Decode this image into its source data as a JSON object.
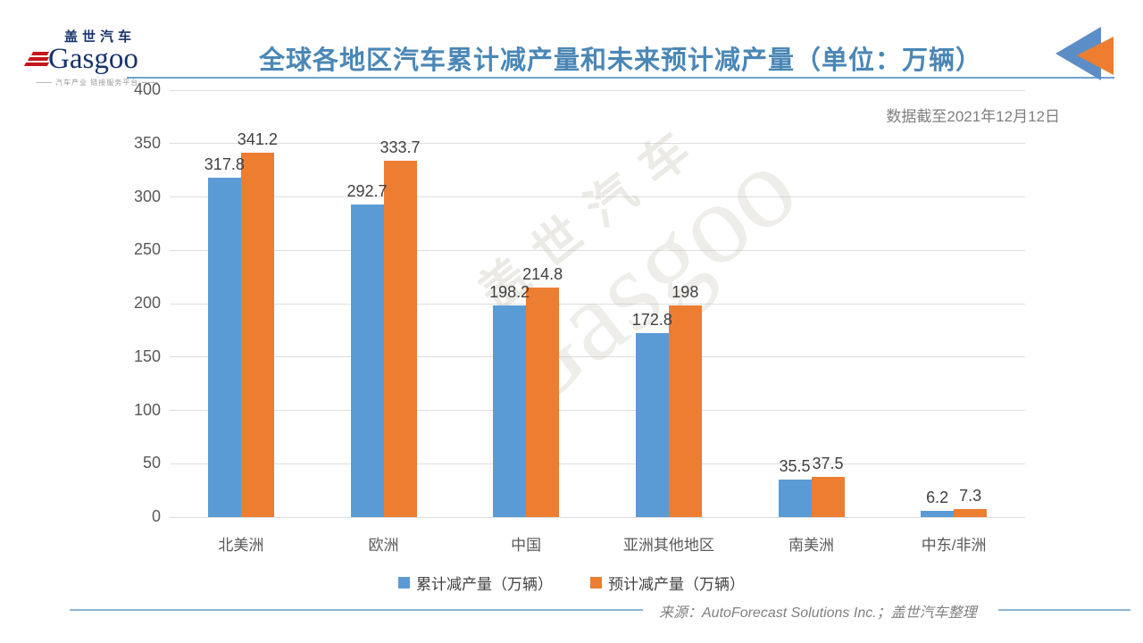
{
  "header": {
    "logo": {
      "cn": "盖世汽车",
      "en": "Gasgoo",
      "tagline": "汽车产业 链接服务平台"
    }
  },
  "watermark": {
    "cn": "盖世汽车",
    "en": "Gasgoo"
  },
  "chart_data": {
    "type": "bar",
    "title": "全球各地区汽车累计减产量和未来预计减产量（单位：万辆）",
    "annotation": "数据截至2021年12月12日",
    "categories": [
      "北美洲",
      "欧洲",
      "中国",
      "亚洲其他地区",
      "南美洲",
      "中东/非洲"
    ],
    "series": [
      {
        "name": "累计减产量（万辆）",
        "color": "#5B9BD5",
        "values": [
          317.8,
          292.7,
          198.2,
          172.8,
          35.5,
          6.2
        ]
      },
      {
        "name": "预计减产量（万辆）",
        "color": "#ED7D31",
        "values": [
          341.2,
          333.7,
          214.8,
          198,
          37.5,
          7.3
        ]
      }
    ],
    "xlabel": "",
    "ylabel": "",
    "ylim": [
      0,
      400
    ],
    "ytick_step": 50,
    "grid": true,
    "legend_position": "bottom"
  },
  "footer": {
    "source": "来源：AutoForecast Solutions Inc.；盖世汽车整理"
  },
  "colors": {
    "title": "#4A87B6",
    "accent_blue": "#5B9BD5",
    "accent_orange": "#ED7D31",
    "triangle_blue": "#5D8DC6",
    "grid": "#DEDEDE",
    "axis_text": "#595959",
    "value_text": "#404040",
    "note_text": "#7F7F7F",
    "logo_navy": "#17336B",
    "logo_red": "#C4161C",
    "footer_line": "#8FB4D6"
  }
}
